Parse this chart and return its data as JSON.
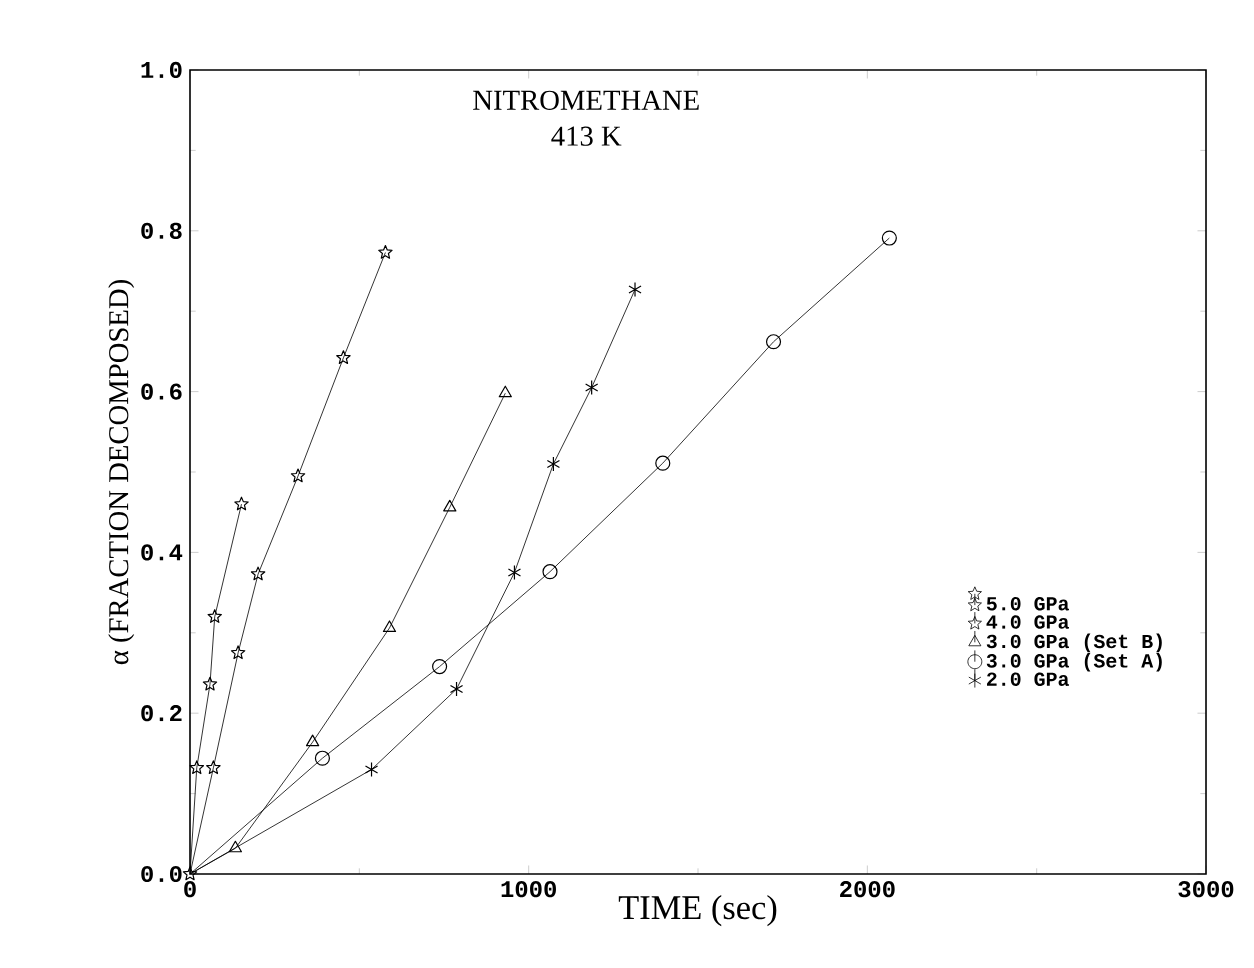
{
  "chart_data": {
    "type": "line",
    "title": "NITROMETHANE",
    "subtitle": "413 K",
    "xlabel": "TIME (sec)",
    "ylabel": "α (FRACTION DECOMPOSED)",
    "xlim": [
      0,
      3000
    ],
    "xticks": [
      0,
      1000,
      2000,
      3000
    ],
    "ylim": [
      0,
      1.0
    ],
    "yticks": [
      {
        "value": 0,
        "label": "0.0"
      },
      {
        "value": 0.2,
        "label": "0.2"
      },
      {
        "value": 0.4,
        "label": "0.4"
      },
      {
        "value": 0.6,
        "label": "0.6"
      },
      {
        "value": 0.8,
        "label": "0.8"
      },
      {
        "value": 1.0,
        "label": "1.0"
      }
    ],
    "legend": "bottom right",
    "grid": false,
    "line_style": "solid",
    "series": [
      {
        "name": "5.0 GPa",
        "color": "#000000",
        "marker": "star",
        "x": [
          0,
          69,
          142,
          201,
          319,
          453,
          577
        ],
        "values": [
          0,
          0.132,
          0.275,
          0.373,
          0.495,
          0.642,
          0.773
        ]
      },
      {
        "name": "4.0 GPa",
        "color": "#000000",
        "marker": "star",
        "x": [
          0,
          20,
          59,
          73,
          152
        ],
        "values": [
          0,
          0.132,
          0.236,
          0.32,
          0.46
        ]
      },
      {
        "name": "3.0 GPa (Set B)",
        "color": "#000000",
        "marker": "triangle",
        "x": [
          0,
          134,
          362,
          589,
          767,
          931
        ],
        "values": [
          0,
          0.032,
          0.164,
          0.306,
          0.456,
          0.598
        ]
      },
      {
        "name": "3.0 GPa (Set A)",
        "color": "#000000",
        "marker": "circle",
        "x": [
          0,
          391,
          737,
          1063,
          1396,
          1723,
          2065
        ],
        "values": [
          0,
          0.144,
          0.258,
          0.376,
          0.511,
          0.662,
          0.791
        ]
      },
      {
        "name": "2.0 GPa",
        "color": "#000000",
        "marker": "cross",
        "x": [
          0,
          536,
          787,
          958,
          1073,
          1186,
          1314
        ],
        "values": [
          0,
          0.13,
          0.23,
          0.375,
          0.51,
          0.605,
          0.727
        ]
      }
    ]
  }
}
